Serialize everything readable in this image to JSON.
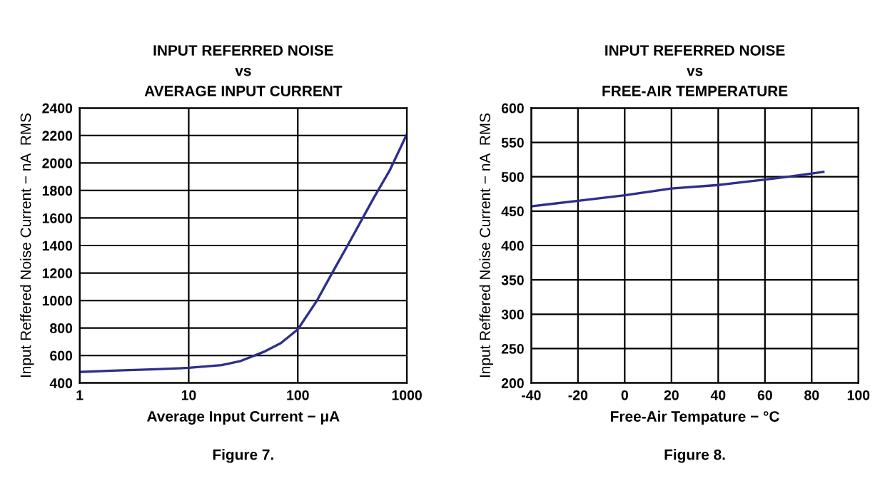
{
  "chart_data": [
    {
      "type": "line",
      "title": "INPUT REFERRED NOISE\nvs\nAVERAGE INPUT CURRENT",
      "xlabel": "Average Input Current − μA",
      "ylabel": "Input Reffered Noise Current − nA  RMS",
      "annotations": [
        "Figure 7."
      ],
      "log": "x",
      "x": [
        1,
        2,
        5,
        10,
        20,
        30,
        50,
        70,
        100,
        150,
        200,
        300,
        500,
        700,
        1000
      ],
      "series": [
        {
          "color": "#2e2e8c",
          "values": [
            480,
            490,
            500,
            510,
            530,
            560,
            630,
            690,
            790,
            1000,
            1180,
            1430,
            1750,
            1950,
            2210
          ]
        }
      ],
      "xlim": [
        1,
        1000
      ],
      "xticks": [
        1,
        10,
        100,
        1000
      ],
      "ylim": [
        400,
        2400
      ],
      "yticks": [
        400,
        600,
        800,
        1000,
        1200,
        1400,
        1600,
        1800,
        2000,
        2200,
        2400
      ],
      "grid": true
    },
    {
      "type": "line",
      "title": "INPUT REFERRED NOISE\nvs\nFREE-AIR TEMPERATURE",
      "xlabel": "Free-Air Tempature − °C",
      "ylabel": "Input Reffered Noise Current − nA  RMS",
      "annotations": [
        "Figure 8."
      ],
      "x": [
        -40,
        -20,
        0,
        20,
        40,
        60,
        70,
        85
      ],
      "series": [
        {
          "color": "#2e2e8c",
          "values": [
            457,
            465,
            473,
            483,
            488,
            496,
            500,
            507
          ]
        }
      ],
      "xlim": [
        -40,
        100
      ],
      "xticks": [
        -40,
        -20,
        0,
        20,
        40,
        60,
        80,
        100
      ],
      "ylim": [
        200,
        600
      ],
      "yticks": [
        200,
        250,
        300,
        350,
        400,
        450,
        500,
        550,
        600
      ],
      "grid": true
    }
  ]
}
